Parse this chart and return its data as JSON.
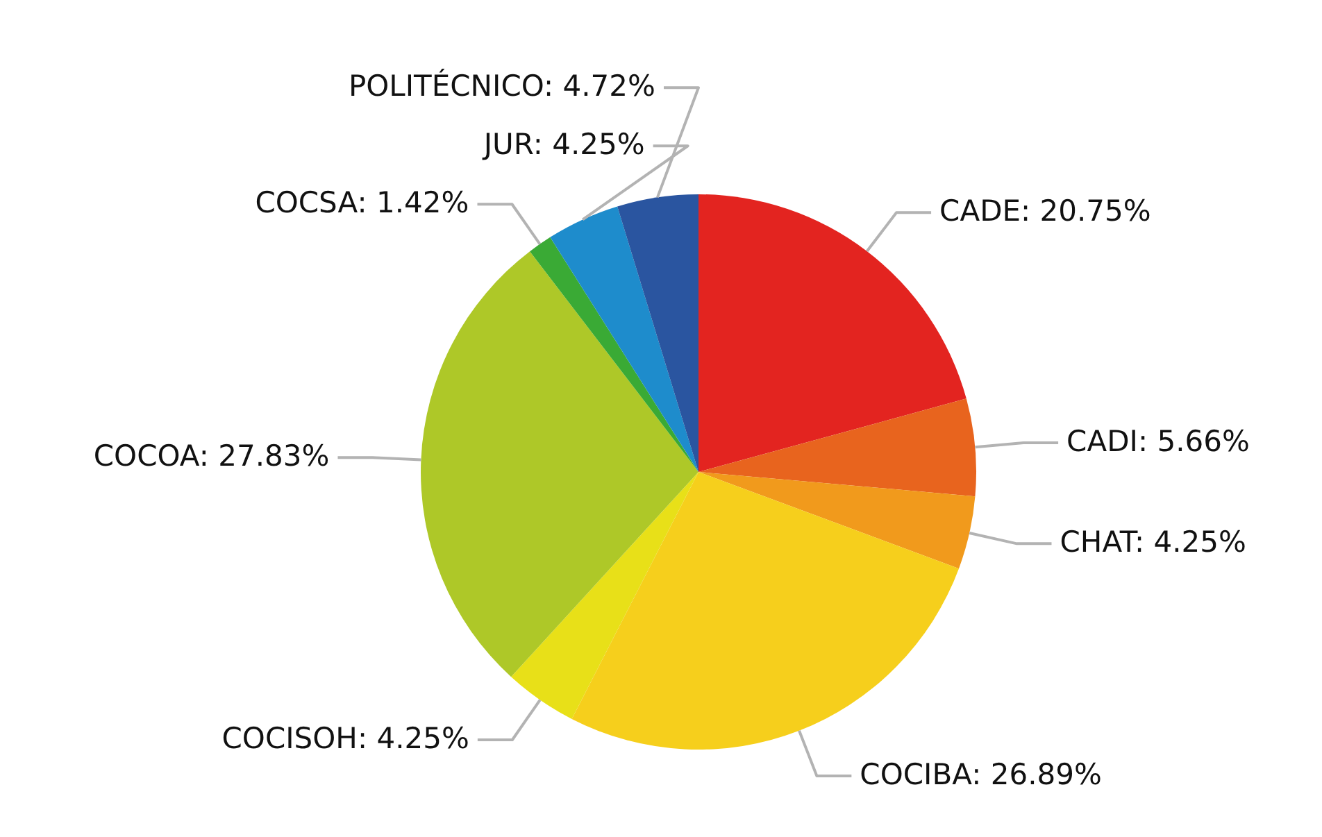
{
  "chart_data": {
    "type": "pie",
    "categories": [
      "CADE",
      "CADI",
      "CHAT",
      "COCIBA",
      "COCISOH",
      "COCOA",
      "COCSA",
      "JUR",
      "POLITÉCNICO"
    ],
    "values": [
      20.75,
      5.66,
      4.25,
      26.89,
      4.25,
      27.83,
      1.42,
      4.25,
      4.72
    ],
    "value_labels": [
      "20.75%",
      "5.66%",
      "4.25%",
      "26.89%",
      "4.25%",
      "27.83%",
      "1.42%",
      "4.25%",
      "4.72%"
    ],
    "colors": [
      "#e32420",
      "#e8641e",
      "#f19a1c",
      "#f6cf1c",
      "#e8e018",
      "#aec828",
      "#3aaa35",
      "#1e8ccc",
      "#2a55a0"
    ]
  }
}
